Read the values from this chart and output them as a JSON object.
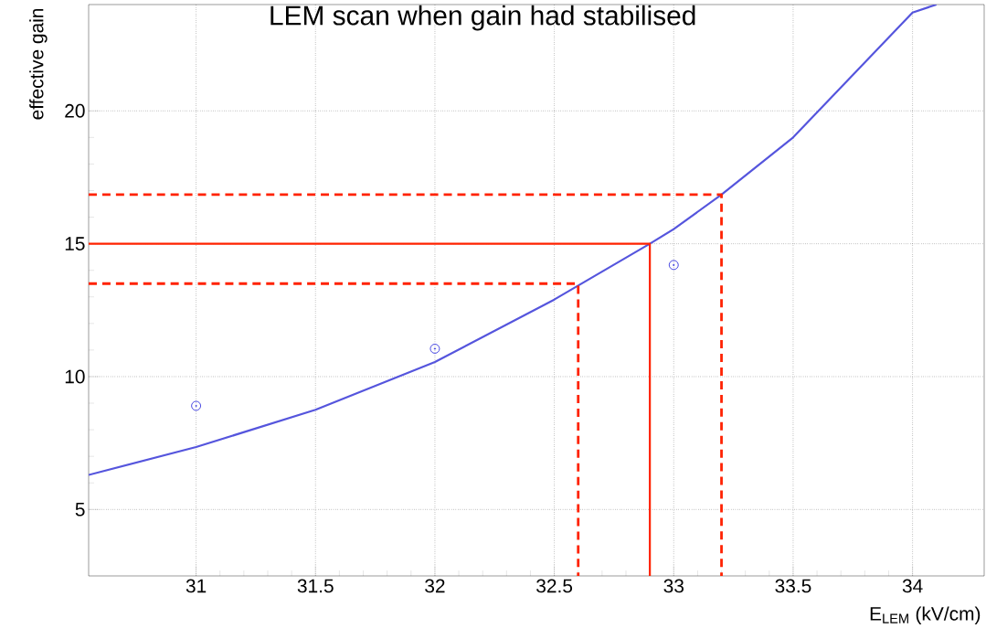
{
  "chart_data": {
    "type": "scatter",
    "title": "LEM scan when gain had stabilised",
    "xlabel": "E$_{LEM}$ (kV/cm)",
    "ylabel": "effective gain",
    "xlim": [
      30.55,
      34.3
    ],
    "ylim": [
      2.5,
      24
    ],
    "xticks": [
      31,
      31.5,
      32,
      32.5,
      33,
      33.5,
      34
    ],
    "yticks": [
      5,
      10,
      15,
      20
    ],
    "grid": true,
    "series": [
      {
        "color": "#3333dd",
        "marker": "circle",
        "x": [
          31,
          32,
          33
        ],
        "values": [
          8.9,
          11.05,
          14.2
        ]
      },
      {
        "type": "line",
        "color": "#5555dd",
        "marker": "none",
        "line_style": "solid",
        "x": [
          30.55,
          31,
          31.5,
          32,
          32.5,
          32.9,
          33,
          33.2,
          33.5,
          34,
          34.1
        ],
        "values": [
          6.3,
          7.35,
          8.75,
          10.55,
          12.9,
          15,
          15.55,
          16.85,
          19.0,
          23.7,
          24
        ]
      },
      {
        "type": "line",
        "color": "#ff2200",
        "marker": "none",
        "line_style": "solid",
        "x": [
          30.55,
          32.9,
          32.9
        ],
        "values": [
          15,
          15,
          2.5
        ]
      },
      {
        "type": "line",
        "color": "#ff2200",
        "marker": "none",
        "line_style": "dashed",
        "x": [
          30.55,
          33.2,
          33.2
        ],
        "values": [
          16.85,
          16.85,
          2.5
        ]
      },
      {
        "type": "line",
        "color": "#ff2200",
        "marker": "none",
        "line_style": "dashed",
        "x": [
          30.55,
          32.6,
          32.6
        ],
        "values": [
          13.5,
          13.5,
          2.5
        ]
      }
    ]
  }
}
